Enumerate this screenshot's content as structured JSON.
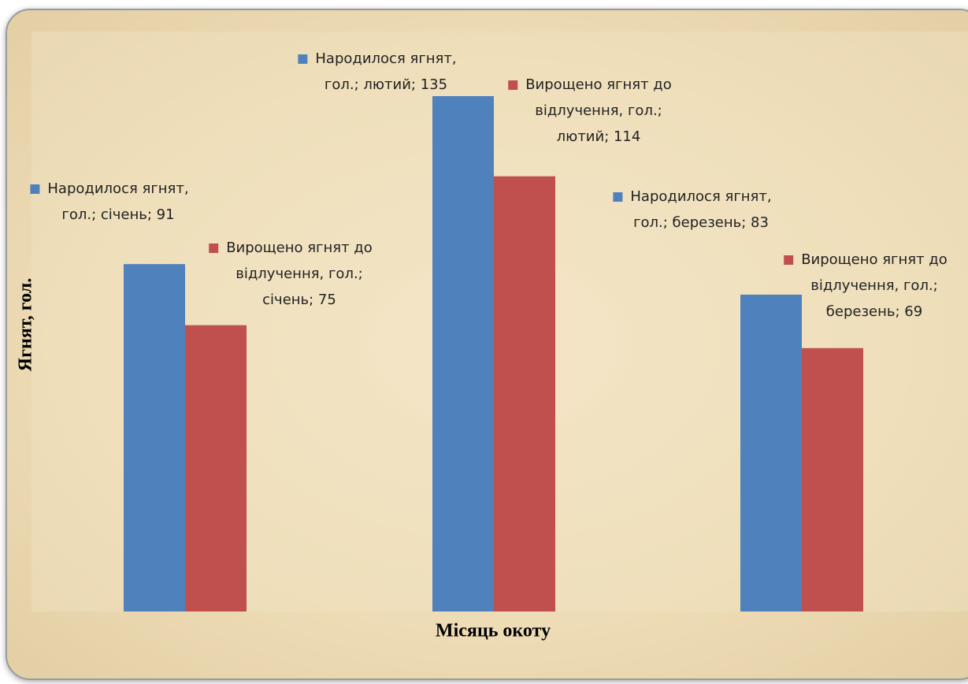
{
  "chart_data": {
    "type": "bar",
    "xlabel": "Місяць окоту",
    "ylabel": "Ягнят, гол.",
    "categories": [
      null,
      null,
      null
    ],
    "series": [
      {
        "name": "Народилося ягнят, гол.",
        "color": "#4f81bd",
        "values": [
          91,
          135,
          83
        ],
        "value_labels": [
          "Народилося ягнят, гол.; січень; 91",
          "Народилося ягнят, гол.; лютий; 135",
          "Народилося ягнят, гол.; березень; 83"
        ]
      },
      {
        "name": "Вирощено ягнят до відлучення, гол.",
        "color": "#c0504d",
        "values": [
          75,
          114,
          69
        ],
        "value_labels": [
          "Вирощено ягнят до відлучення, гол.; січень; 75",
          "Вирощено ягнят до відлучення, гол.; лютий; 114",
          "Вирощено ягнят до відлучення, гол.; березень; 69"
        ]
      }
    ],
    "ylim": [
      0,
      150
    ]
  }
}
